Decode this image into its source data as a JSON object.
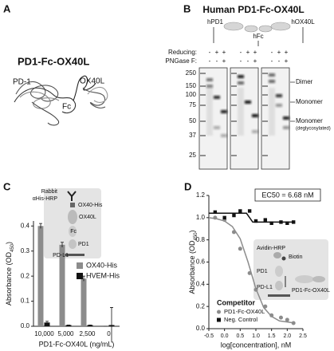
{
  "panel_a": {
    "label": "A",
    "title": "PD1-Fc-OX40L",
    "parts": [
      "PD-1",
      "Fc",
      "OX40L"
    ]
  },
  "panel_b": {
    "label": "B",
    "title": "Human PD1-Fc-OX40L",
    "domains": [
      "hPD1",
      "hFc",
      "hOX40L"
    ],
    "conditions": [
      "Reducing:",
      "PNGase F:"
    ],
    "gels": [
      {
        "reducing": [
          "-",
          "+",
          "+"
        ],
        "pngase": [
          "-",
          "-",
          "+"
        ]
      },
      {
        "reducing": [
          "-",
          "+",
          "+"
        ],
        "pngase": [
          "-",
          "-",
          "+"
        ]
      },
      {
        "reducing": [
          "-",
          "+",
          "+"
        ],
        "pngase": [
          "-",
          "-",
          "+"
        ]
      }
    ],
    "ladder": [
      250,
      150,
      100,
      75,
      50,
      37,
      25
    ],
    "band_labels": [
      "Dimer",
      "Monomer",
      "Monomer",
      "(deglycosylated)"
    ]
  },
  "chart_data": [
    {
      "panel": "C",
      "type": "bar",
      "categories": [
        "10,000",
        "5,000",
        "2,500",
        "0"
      ],
      "series": [
        {
          "name": "OX40-His",
          "color": "#8c8c8c",
          "values": [
            0.4,
            0.325,
            0.19,
            0.0
          ],
          "errors": [
            0.01,
            0.01,
            0.01,
            0.0
          ]
        },
        {
          "name": "HVEM-His",
          "color": "#111111",
          "values": [
            0.015,
            0.005,
            0.005,
            0.005
          ],
          "errors": [
            0.005,
            0.0,
            0.0,
            0.07
          ]
        }
      ],
      "ylim": [
        0,
        0.42
      ],
      "yticks": [
        {
          "value": 0,
          "label": "0.0"
        },
        0.1,
        0.2,
        0.3,
        0.4
      ],
      "xlabel": "PD1-Fc-OX40L (ng/mL)",
      "ylabel": {
        "text": "Absorbance (OD",
        "sub": "450",
        "close": ")"
      },
      "diagram": [
        "Rabbit",
        "αHis-HRP",
        "OX40-His",
        "OX40L",
        "Fc",
        "PD1",
        "PD-L1"
      ]
    },
    {
      "panel": "D",
      "type": "scatter",
      "series": [
        {
          "name": "PD1-Fc-OX40L",
          "color": "#8c8c8c",
          "marker": "circle",
          "x": [
            -0.3,
            0.0,
            0.3,
            0.5,
            0.8,
            1.0,
            1.3,
            1.5,
            1.8,
            2.0,
            2.2
          ],
          "values": [
            1.0,
            0.98,
            0.87,
            0.72,
            0.5,
            0.35,
            0.2,
            0.12,
            0.1,
            0.08,
            0.05
          ]
        },
        {
          "name": "Neg. Control",
          "color": "#111111",
          "marker": "square",
          "x": [
            -0.3,
            0.0,
            0.3,
            0.5,
            0.8,
            1.0,
            1.3,
            1.5,
            1.8,
            2.0,
            2.2
          ],
          "values": [
            1.05,
            1.0,
            1.02,
            1.06,
            1.06,
            0.97,
            0.98,
            0.95,
            0.96,
            0.95,
            0.96
          ]
        }
      ],
      "fits": [
        {
          "color": "#8c8c8c",
          "x": [
            -0.5,
            -0.25,
            0.0,
            0.25,
            0.5,
            0.75,
            1.0,
            1.25,
            1.5,
            1.75,
            2.0,
            2.25
          ],
          "values": [
            1.0,
            0.99,
            0.97,
            0.92,
            0.81,
            0.6,
            0.36,
            0.19,
            0.11,
            0.07,
            0.06,
            0.05
          ]
        },
        {
          "color": "#111111",
          "x": [
            -0.5,
            0.7,
            0.9,
            2.25
          ],
          "values": [
            1.04,
            1.04,
            0.96,
            0.96
          ]
        }
      ],
      "xlim": [
        -0.5,
        2.5
      ],
      "ylim": [
        0,
        1.2
      ],
      "xticks": [
        -0.5,
        {
          "value": 0,
          "label": "0.0"
        },
        0.5,
        {
          "value": 1,
          "label": "1.0"
        },
        1.5,
        {
          "value": 2,
          "label": "2.0"
        },
        2.5
      ],
      "yticks": [
        {
          "value": 0,
          "label": "0.0"
        },
        0.2,
        0.4,
        0.6,
        0.8,
        {
          "value": 1,
          "label": "1.0"
        },
        1.2
      ],
      "xlabel": "log[concentration], nM",
      "ylabel": {
        "text": "Absorbance (OD",
        "sub": "450",
        "close": ")"
      },
      "annotation": "EC50 = 6.68 nM",
      "legend_title": "Competitor",
      "diagram": [
        "Avidin-HRP",
        "Biotin",
        "PD1",
        "PD-L1",
        "PD1-Fc-OX40L"
      ]
    }
  ]
}
